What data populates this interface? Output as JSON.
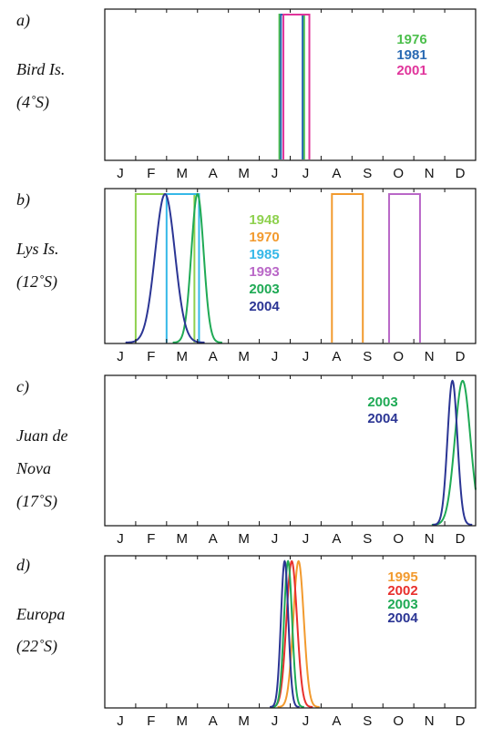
{
  "chart_data": [
    {
      "type": "line",
      "panel_label": "a)",
      "site": [
        "Bird Is.",
        "(4˚S)"
      ],
      "months": [
        "J",
        "F",
        "M",
        "A",
        "M",
        "J",
        "J",
        "A",
        "S",
        "O",
        "N",
        "D"
      ],
      "xlim": [
        1,
        13
      ],
      "series": [
        {
          "name": "1976",
          "color": "#4cbf4c",
          "shape": "box",
          "start": 6.65,
          "end": 7.45
        },
        {
          "name": "1981",
          "color": "#2a6ab3",
          "shape": "box",
          "start": 6.7,
          "end": 7.4
        },
        {
          "name": "2001",
          "color": "#e0349b",
          "shape": "box",
          "start": 6.78,
          "end": 7.62
        }
      ]
    },
    {
      "type": "line",
      "panel_label": "b)",
      "site": [
        "Lys Is.",
        "(12˚S)"
      ],
      "months": [
        "J",
        "F",
        "M",
        "A",
        "M",
        "J",
        "J",
        "A",
        "S",
        "O",
        "N",
        "D"
      ],
      "xlim": [
        1,
        13
      ],
      "series": [
        {
          "name": "1948",
          "color": "#8fd14f",
          "shape": "box",
          "start": 2.0,
          "end": 3.9
        },
        {
          "name": "1970",
          "color": "#f29a2e",
          "shape": "box",
          "start": 8.35,
          "end": 9.35
        },
        {
          "name": "1985",
          "color": "#35b8e8",
          "shape": "box",
          "start": 3.0,
          "end": 4.05
        },
        {
          "name": "1993",
          "color": "#b967c7",
          "shape": "box",
          "start": 10.2,
          "end": 11.2
        },
        {
          "name": "2003",
          "color": "#1faa55",
          "shape": "gaussian",
          "peak": 4.0,
          "sigma": 0.2
        },
        {
          "name": "2004",
          "color": "#2b3594",
          "shape": "gaussian",
          "peak": 2.95,
          "sigma": 0.32
        }
      ]
    },
    {
      "type": "line",
      "panel_label": "c)",
      "site": [
        "Juan de",
        "Nova",
        "(17˚S)"
      ],
      "months": [
        "J",
        "F",
        "M",
        "A",
        "M",
        "J",
        "J",
        "A",
        "S",
        "O",
        "N",
        "D"
      ],
      "xlim": [
        1,
        13
      ],
      "series": [
        {
          "name": "2003",
          "color": "#1faa55",
          "shape": "gaussian",
          "peak": 12.58,
          "sigma": 0.25
        },
        {
          "name": "2004",
          "color": "#2b3594",
          "shape": "gaussian",
          "peak": 12.25,
          "sigma": 0.16
        }
      ]
    },
    {
      "type": "line",
      "panel_label": "d)",
      "site": [
        "Europa",
        "(22˚S)"
      ],
      "months": [
        "J",
        "F",
        "M",
        "A",
        "M",
        "J",
        "J",
        "A",
        "S",
        "O",
        "N",
        "D"
      ],
      "xlim": [
        1,
        13
      ],
      "series": [
        {
          "name": "1995",
          "color": "#f29a2e",
          "shape": "gaussian",
          "peak": 7.27,
          "sigma": 0.17
        },
        {
          "name": "2002",
          "color": "#e8302d",
          "shape": "gaussian",
          "peak": 7.05,
          "sigma": 0.17
        },
        {
          "name": "2003",
          "color": "#1faa55",
          "shape": "gaussian",
          "peak": 6.93,
          "sigma": 0.13
        },
        {
          "name": "2004",
          "color": "#2b3594",
          "shape": "gaussian",
          "peak": 6.82,
          "sigma": 0.12
        }
      ]
    }
  ]
}
